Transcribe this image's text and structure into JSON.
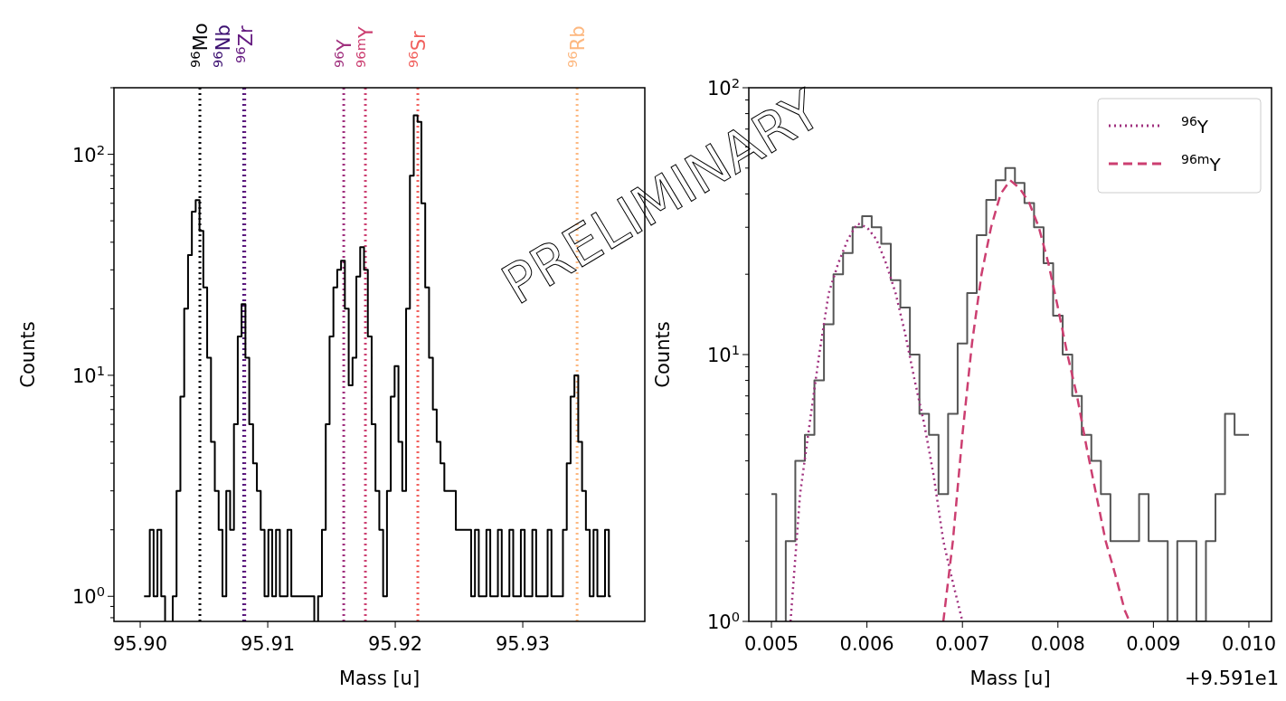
{
  "chart_data": [
    {
      "type": "step",
      "xlabel": "Mass [u]",
      "ylabel": "Counts",
      "log": "y",
      "xlim": [
        95.89794,
        95.93957
      ],
      "xticks": [
        {
          "value": 95.9,
          "label": "95.90"
        },
        {
          "value": 95.91,
          "label": "95.91"
        },
        {
          "value": 95.92,
          "label": "95.92"
        },
        {
          "value": 95.93,
          "label": "95.93"
        }
      ],
      "ylim": [
        0.77,
        200
      ],
      "yticks": [
        {
          "value": 0.8,
          "label": null
        },
        {
          "value": 0.9,
          "label": null
        },
        {
          "value": 1,
          "label": "10$^{0}$"
        },
        {
          "value": 2,
          "label": null
        },
        {
          "value": 3,
          "label": null
        },
        {
          "value": 4,
          "label": null
        },
        {
          "value": 5,
          "label": null
        },
        {
          "value": 6,
          "label": null
        },
        {
          "value": 7,
          "label": null
        },
        {
          "value": 8,
          "label": null
        },
        {
          "value": 9,
          "label": null
        },
        {
          "value": 10,
          "label": "10$^{1}$"
        },
        {
          "value": 20,
          "label": null
        },
        {
          "value": 30,
          "label": null
        },
        {
          "value": 40,
          "label": null
        },
        {
          "value": 50,
          "label": null
        },
        {
          "value": 60,
          "label": null
        },
        {
          "value": 70,
          "label": null
        },
        {
          "value": 80,
          "label": null
        },
        {
          "value": 90,
          "label": null
        },
        {
          "value": 100,
          "label": "10$^{2}$"
        },
        {
          "value": 200,
          "label": null
        }
      ],
      "annotations": [
        "PRELIMINARY"
      ],
      "ref_lines": [
        {
          "axis": "x",
          "value": 95.90468,
          "label": "$^{96}$Mo",
          "color": "#000004",
          "line_style": "dotted"
        },
        {
          "axis": "x",
          "value": 95.90812,
          "label": "$^{96}$Nb",
          "color": "#3b0f70",
          "line_style": "dotted"
        },
        {
          "axis": "x",
          "value": 95.9082,
          "label": "$^{96}$Zr",
          "color": "#641a80",
          "line_style": "dotted"
        },
        {
          "axis": "x",
          "value": 95.91596,
          "label": "$^{96}$Y",
          "color": "#a0307e",
          "line_style": "dotted"
        },
        {
          "axis": "x",
          "value": 95.91766,
          "label": "$^{96m}$Y",
          "color": "#cc3f71",
          "line_style": "dotted"
        },
        {
          "axis": "x",
          "value": 95.92177,
          "label": "$^{96}$Sr",
          "color": "#f1605d",
          "line_style": "dotted"
        },
        {
          "axis": "x",
          "value": 95.93426,
          "label": "$^{96}$Rb",
          "color": "#fdb880",
          "line_style": "dotted"
        }
      ],
      "series": [
        {
          "color": "#000000",
          "x": [
            95.9003,
            95.9006,
            95.9009,
            95.9012,
            95.9015,
            95.9018,
            95.9021,
            95.9024,
            95.9027,
            95.903,
            95.9033,
            95.9036,
            95.9039,
            95.9042,
            95.9045,
            95.9048,
            95.9051,
            95.9054,
            95.9057,
            95.906,
            95.9063,
            95.9066,
            95.9069,
            95.9072,
            95.9075,
            95.9078,
            95.9081,
            95.9084,
            95.9087,
            95.909,
            95.9093,
            95.9096,
            95.9099,
            95.9102,
            95.9105,
            95.9108,
            95.9111,
            95.9114,
            95.9117,
            95.912,
            95.9123,
            95.9126,
            95.9129,
            95.9132,
            95.9135,
            95.9138,
            95.9141,
            95.9144,
            95.9147,
            95.915,
            95.9153,
            95.9156,
            95.9159,
            95.9162,
            95.9165,
            95.9168,
            95.9171,
            95.9174,
            95.9177,
            95.918,
            95.9183,
            95.9186,
            95.9189,
            95.9192,
            95.9195,
            95.9198,
            95.9201,
            95.9204,
            95.9207,
            95.921,
            95.9213,
            95.9216,
            95.9219,
            95.9222,
            95.9225,
            95.9228,
            95.9231,
            95.9234,
            95.9237,
            95.924,
            95.9243,
            95.9246,
            95.9249,
            95.9252,
            95.9255,
            95.9258,
            95.9261,
            95.9264,
            95.9267,
            95.927,
            95.9273,
            95.9276,
            95.9279,
            95.9282,
            95.9285,
            95.9288,
            95.9291,
            95.9294,
            95.9297,
            95.93,
            95.9303,
            95.9306,
            95.9309,
            95.9312,
            95.9315,
            95.9318,
            95.9321,
            95.9324,
            95.9327,
            95.933,
            95.9333,
            95.9336,
            95.9339,
            95.9342,
            95.9345,
            95.9348,
            95.9351,
            95.9354,
            95.9357,
            95.936,
            95.9363,
            95.9366,
            95.9369
          ],
          "values": [
            1,
            1,
            2,
            1,
            2,
            1,
            null,
            null,
            1,
            3,
            8,
            20,
            35,
            55,
            62,
            45,
            25,
            12,
            5,
            3,
            2,
            1,
            3,
            2,
            6,
            15,
            21,
            12,
            6,
            4,
            3,
            2,
            1,
            2,
            1,
            2,
            1,
            1,
            2,
            1,
            1,
            1,
            1,
            1,
            1,
            null,
            1,
            2,
            6,
            15,
            25,
            30,
            33,
            20,
            9,
            12,
            28,
            38,
            30,
            15,
            6,
            3,
            2,
            1,
            3,
            8,
            11,
            5,
            3,
            20,
            80,
            150,
            140,
            60,
            25,
            12,
            7,
            5,
            4,
            3,
            3,
            3,
            2,
            2,
            2,
            2,
            1,
            2,
            1,
            1,
            2,
            1,
            1,
            2,
            1,
            1,
            2,
            1,
            1,
            2,
            1,
            1,
            2,
            1,
            1,
            1,
            2,
            1,
            1,
            1,
            2,
            4,
            8,
            10,
            5,
            3,
            2,
            1,
            2,
            1,
            1,
            2,
            1
          ]
        }
      ]
    },
    {
      "type": "step",
      "xlabel": "Mass [u]",
      "ylabel": "Counts",
      "log": "y",
      "legend": "top right",
      "xlim": [
        0.004763,
        0.010237
      ],
      "xticks": [
        {
          "value": 0.005,
          "label": "0.005"
        },
        {
          "value": 0.006,
          "label": "0.006"
        },
        {
          "value": 0.007,
          "label": "0.007"
        },
        {
          "value": 0.008,
          "label": "0.008"
        },
        {
          "value": 0.009,
          "label": "0.009"
        },
        {
          "value": 0.01,
          "label": "0.010"
        }
      ],
      "ylim": [
        1,
        100
      ],
      "yticks": [
        {
          "value": 1,
          "label": "10$^{0}$"
        },
        {
          "value": 2,
          "label": null
        },
        {
          "value": 3,
          "label": null
        },
        {
          "value": 4,
          "label": null
        },
        {
          "value": 5,
          "label": null
        },
        {
          "value": 6,
          "label": null
        },
        {
          "value": 7,
          "label": null
        },
        {
          "value": 8,
          "label": null
        },
        {
          "value": 9,
          "label": null
        },
        {
          "value": 10,
          "label": "10$^{1}$"
        },
        {
          "value": 20,
          "label": null
        },
        {
          "value": 30,
          "label": null
        },
        {
          "value": 40,
          "label": null
        },
        {
          "value": 50,
          "label": null
        },
        {
          "value": 60,
          "label": null
        },
        {
          "value": 70,
          "label": null
        },
        {
          "value": 80,
          "label": null
        },
        {
          "value": 90,
          "label": null
        },
        {
          "value": 100,
          "label": "10$^{2}$"
        }
      ],
      "annotations": [
        "+9.591e1"
      ],
      "series": [
        {
          "color": "#555555",
          "x": [
            0.005,
            0.0051,
            0.0052,
            0.0053,
            0.0054,
            0.0055,
            0.0056,
            0.0057,
            0.0058,
            0.0059,
            0.006,
            0.0061,
            0.0062,
            0.0063,
            0.0064,
            0.0065,
            0.0066,
            0.0067,
            0.0068,
            0.0069,
            0.007,
            0.0071,
            0.0072,
            0.0073,
            0.0074,
            0.0075,
            0.0076,
            0.0077,
            0.0078,
            0.0079,
            0.008,
            0.0081,
            0.0082,
            0.0083,
            0.0084,
            0.0085,
            0.0086,
            0.0087,
            0.0088,
            0.0089,
            0.009,
            0.0091,
            0.0092,
            0.0093,
            0.0094,
            0.0095,
            0.0096,
            0.0097,
            0.0098,
            0.0099,
            0.01
          ],
          "values": [
            3,
            null,
            2,
            4,
            5,
            8,
            13,
            20,
            24,
            30,
            33,
            30,
            26,
            19,
            15,
            10,
            6,
            5,
            3,
            6,
            11,
            17,
            28,
            38,
            45,
            50,
            44,
            37,
            30,
            22,
            14,
            10,
            7,
            5,
            4,
            3,
            2,
            2,
            2,
            3,
            2,
            2,
            1,
            2,
            2,
            1,
            2,
            3,
            6,
            5,
            5
          ]
        },
        {
          "type": "line",
          "name": "$^{96}$Y",
          "color": "#a0307e",
          "line_style": "dotted",
          "x": [
            0.0052,
            0.0053,
            0.0054,
            0.0055,
            0.0056,
            0.0057,
            0.0058,
            0.0059,
            0.006,
            0.0061,
            0.0062,
            0.0063,
            0.0064,
            0.0065,
            0.0066,
            0.0067,
            0.0068,
            0.0069,
            0.007
          ],
          "values": [
            1,
            3,
            5.5,
            10,
            17,
            22,
            27,
            31,
            30,
            27,
            22,
            17,
            12,
            8,
            5.5,
            3.5,
            2,
            1.4,
            1
          ]
        },
        {
          "type": "line",
          "name": "$^{96m}$Y",
          "color": "#cc3f71",
          "line_style": "dashed",
          "x": [
            0.0068,
            0.0069,
            0.007,
            0.0071,
            0.0072,
            0.0073,
            0.0074,
            0.0075,
            0.0076,
            0.0077,
            0.0078,
            0.0079,
            0.008,
            0.0081,
            0.0082,
            0.0083,
            0.0084,
            0.0085,
            0.0086,
            0.0087,
            0.00875
          ],
          "values": [
            1,
            2,
            5,
            11,
            20,
            30,
            40,
            45,
            42,
            37,
            30,
            22,
            15,
            10,
            7,
            4.5,
            3,
            2,
            1.5,
            1.1,
            1
          ]
        }
      ]
    }
  ]
}
